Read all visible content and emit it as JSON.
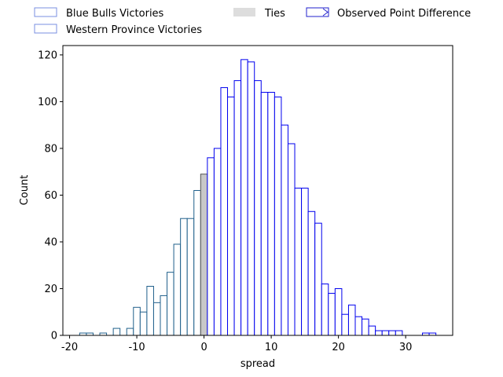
{
  "chart_data": {
    "type": "bar",
    "xlabel": "spread",
    "ylabel": "Count",
    "xlim": [
      -21,
      37
    ],
    "ylim": [
      0,
      124
    ],
    "xticks": [
      -20,
      -10,
      0,
      10,
      20,
      30
    ],
    "yticks": [
      0,
      20,
      40,
      60,
      80,
      100,
      120
    ],
    "grid": false,
    "legend_placement": "top, outside plot",
    "bin_width": 1,
    "series": [
      {
        "name": "Blue Bulls Victories",
        "edge_color": "#1f5f8b",
        "bins": [
          [
            -18,
            1
          ],
          [
            -17,
            1
          ],
          [
            -15,
            1
          ],
          [
            -13,
            3
          ],
          [
            -11,
            3
          ],
          [
            -10,
            12
          ],
          [
            -9,
            10
          ],
          [
            -8,
            21
          ],
          [
            -7,
            14
          ],
          [
            -6,
            17
          ],
          [
            -5,
            27
          ],
          [
            -4,
            39
          ],
          [
            -3,
            50
          ],
          [
            -2,
            50
          ],
          [
            -1,
            62
          ]
        ]
      },
      {
        "name": "Ties",
        "fill_color": "#c8c8c8",
        "edge_color": "#555555",
        "bins": [
          [
            0,
            69
          ]
        ]
      },
      {
        "name": "Western Province Victories",
        "edge_color": "#0000ee",
        "bins": [
          [
            1,
            76
          ],
          [
            2,
            80
          ],
          [
            3,
            106
          ],
          [
            4,
            102
          ],
          [
            5,
            109
          ],
          [
            6,
            118
          ],
          [
            7,
            117
          ],
          [
            8,
            109
          ],
          [
            9,
            104
          ],
          [
            10,
            104
          ],
          [
            11,
            102
          ],
          [
            12,
            90
          ],
          [
            13,
            82
          ],
          [
            14,
            63
          ],
          [
            15,
            63
          ],
          [
            16,
            53
          ],
          [
            17,
            48
          ],
          [
            18,
            22
          ],
          [
            19,
            18
          ],
          [
            20,
            20
          ],
          [
            21,
            9
          ],
          [
            22,
            13
          ],
          [
            23,
            8
          ],
          [
            24,
            7
          ],
          [
            25,
            4
          ],
          [
            26,
            2
          ],
          [
            27,
            2
          ],
          [
            28,
            2
          ],
          [
            29,
            2
          ],
          [
            33,
            1
          ],
          [
            34,
            1
          ]
        ]
      }
    ]
  },
  "legend": {
    "items": [
      {
        "label": "Blue Bulls Victories",
        "swatch": "blue-outline",
        "edge": "#7a8fe0"
      },
      {
        "label": "Western Province Victories",
        "swatch": "blue-outline",
        "edge": "#7a8fe0"
      },
      {
        "label": "Ties",
        "swatch": "gray-fill",
        "fill": "#dddddd"
      },
      {
        "label": "Observed Point Difference",
        "swatch": "arrow-box",
        "edge": "#2222cc"
      }
    ]
  }
}
